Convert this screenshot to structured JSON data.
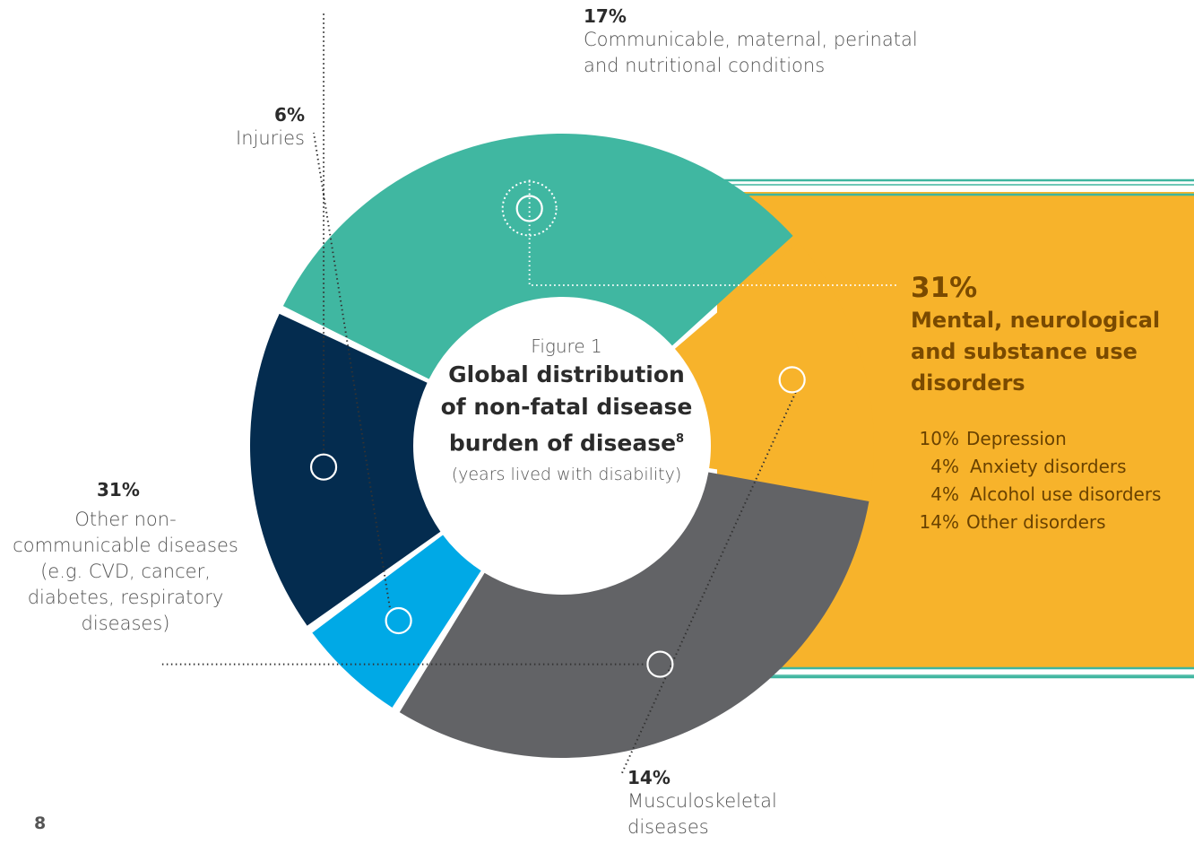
{
  "figure": {
    "label": "Figure 1",
    "title_lines": [
      "Global distribution",
      "of non-fatal disease",
      "burden of disease"
    ],
    "title_superscript": "8",
    "subtitle": "(years lived with disability)"
  },
  "page_number": "8",
  "chart_data": {
    "type": "pie",
    "donut": true,
    "slices": [
      {
        "pct_label": "17%",
        "value": 17,
        "label_lines": [
          "Communicable, maternal, perinatal",
          "and nutritional conditions"
        ],
        "color": "#042c4f"
      },
      {
        "pct_label": "31%",
        "value": 31,
        "label_lines": [
          "Mental, neurological",
          "and substance use",
          "disorders"
        ],
        "color": "#40b7a1"
      },
      {
        "pct_label": "14%",
        "value": 14,
        "label_lines": [
          "Musculoskeletal",
          "diseases"
        ],
        "color": "#f7b32b"
      },
      {
        "pct_label": "31%",
        "value": 31,
        "label_lines": [
          "Other non-",
          "communicable diseases",
          "(e.g. CVD, cancer,",
          "diabetes, respiratory",
          "diseases)"
        ],
        "color": "#626366"
      },
      {
        "pct_label": "6%",
        "value": 6,
        "label_lines": [
          "Injuries"
        ],
        "color": "#00a9e6"
      }
    ],
    "breakdown": {
      "parent": "Mental, neurological and substance use disorders",
      "panel_color": "#f7b32b",
      "rows": [
        {
          "pct": "10%",
          "name": "Depression",
          "value": 10
        },
        {
          "pct": "4%",
          "name": "Anxiety disorders",
          "value": 4
        },
        {
          "pct": "4%",
          "name": "Alcohol use disorders",
          "value": 4
        },
        {
          "pct": "14%",
          "name": "Other disorders",
          "value": 14
        }
      ]
    }
  }
}
